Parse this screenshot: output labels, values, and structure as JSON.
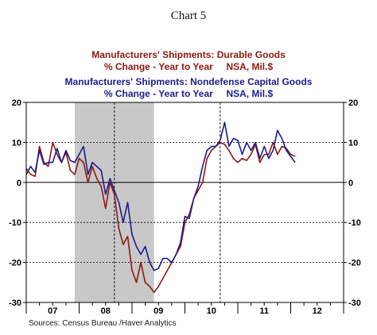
{
  "chart_label": "Chart 5",
  "legend": {
    "durable_line1": "Manufacturers' Shipments: Durable Goods",
    "durable_line2": "% Change - Year to Year     NSA, Mil.$",
    "capital_line1": "Manufacturers' Shipments: Nondefense Capital Goods",
    "capital_line2": "% Change - Year to Year     NSA, Mil.$"
  },
  "source": "Sources:  Census Bureau /Haver Analytics",
  "chart_data": {
    "type": "line",
    "x_start_year": 2007,
    "x_end_year": 2013,
    "ylim": [
      -30,
      20
    ],
    "yticks": [
      20,
      10,
      0,
      -10,
      -20,
      -30
    ],
    "year_labels": [
      "07",
      "08",
      "09",
      "10",
      "11",
      "12"
    ],
    "recession_shading": {
      "start": "2007-12",
      "end": "2009-06",
      "color": "#c8c8c8"
    },
    "vertical_markers": [
      "2008-09",
      "2010-09"
    ],
    "grid": true,
    "series": [
      {
        "color": "#8b1a10",
        "start": "2007-01",
        "values": [
          3.5,
          2,
          1.5,
          9,
          5,
          4,
          10,
          7,
          5,
          7.5,
          3,
          2,
          6,
          5,
          0,
          4,
          1,
          -1,
          -6.5,
          0,
          -3,
          -11.5,
          -15.5,
          -13.5,
          -22,
          -25,
          -20,
          -25,
          -26,
          -27.5,
          -26,
          -24,
          -22,
          -20,
          -18,
          -16,
          -10,
          -8,
          -4,
          -2,
          0,
          6,
          8,
          9,
          10,
          9.5,
          8,
          6,
          5,
          6,
          5.5,
          7,
          9.5,
          5,
          7,
          7,
          10,
          7,
          9,
          8.5,
          7,
          6.5
        ]
      },
      {
        "color": "#1c1c8c",
        "start": "2007-01",
        "values": [
          2,
          4,
          2.5,
          8,
          4.5,
          5,
          5,
          8.5,
          5,
          8,
          5.5,
          5,
          7,
          9,
          2,
          5,
          4,
          3,
          -3,
          1,
          -2,
          -5,
          -10,
          -5,
          -13,
          -16,
          -18,
          -16,
          -20,
          -22,
          -21.5,
          -19,
          -19,
          -20,
          -18,
          -15,
          -8.5,
          -9,
          -4,
          -1,
          4,
          8,
          9,
          9,
          10.5,
          15,
          9,
          11,
          10.5,
          7,
          10,
          8,
          10,
          6,
          9,
          6,
          8,
          13,
          11,
          8,
          6.5,
          5
        ]
      }
    ]
  }
}
